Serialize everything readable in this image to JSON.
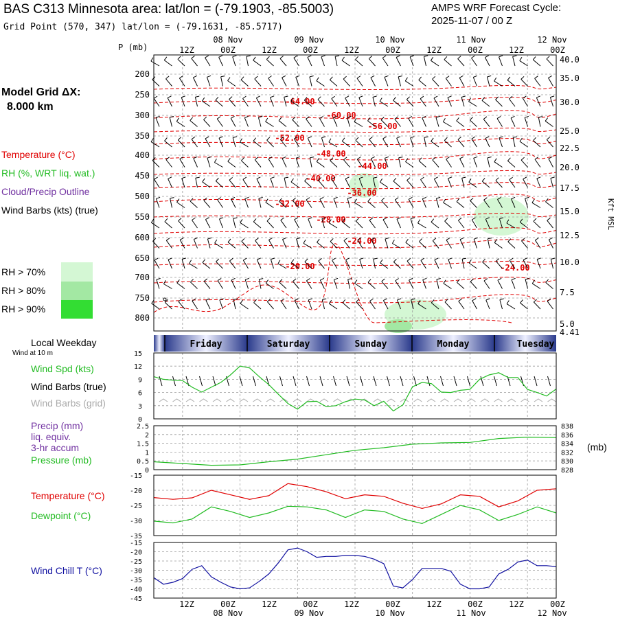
{
  "header": {
    "title": "BAS C313 Minnesota area:  lat/lon = (-79.1903, -85.5003)",
    "cycle_line1": "AMPS WRF Forecast Cycle:",
    "cycle_line2": "2025-11-07 / 00  Z",
    "subtitle": "Grid Point (570, 347) lat/lon = (-79.1631, -85.5717)"
  },
  "left_panel": {
    "model_grid_label": "Model Grid ΔX:",
    "model_grid_value": "8.000 km",
    "legend_temperature": "Temperature (°C)",
    "legend_rh": "RH (%, WRT liq. wat.)",
    "legend_cloud": "Cloud/Precip Outline",
    "legend_wind": "Wind Barbs (kts) (true)",
    "rh_70": "RH > 70%",
    "rh_80": "RH > 80%",
    "rh_90": "RH > 90%",
    "local_weekday": "Local Weekday",
    "wind_at_10m": "Wind at 10 m",
    "wind_spd": "Wind Spd (kts)",
    "wind_barbs_true": "Wind Barbs (true)",
    "wind_barbs_grid": "Wind Barbs (grid)",
    "precip_line1": "Precip (mm)",
    "precip_line2": "liq. equiv.",
    "precip_line3": "3-hr accum",
    "pressure": "Pressure (mb)",
    "temperature": "Temperature (°C)",
    "dewpoint": "Dewpoint (°C)",
    "windchill": "Wind Chill T (°C)",
    "mb_unit": "(mb)"
  },
  "colors": {
    "temp": "#e00000",
    "rh": "#22bb22",
    "cloud": "#7030a0",
    "grey": "#aaaaaa",
    "windchill": "#1010a0",
    "rh70": "#d4f7d4",
    "rh80": "#a3e8a3",
    "rh90": "#33dd33"
  },
  "chart_data": [
    {
      "type": "line",
      "name": "time-height cross section",
      "time_hours": [
        12,
        96
      ],
      "time_ticks_top": [
        "12Z",
        "00Z",
        "12Z",
        "00Z",
        "12Z",
        "00Z",
        "12Z",
        "00Z",
        "12Z",
        "00Z"
      ],
      "date_labels_top": [
        "08 Nov",
        "09 Nov",
        "10 Nov",
        "11 Nov",
        "12 Nov"
      ],
      "pressure_axis_label": "P (mb)",
      "pressure_ticks": [
        "200",
        "250",
        "300",
        "350",
        "400",
        "450",
        "500",
        "550",
        "600",
        "650",
        "700",
        "750",
        "800"
      ],
      "height_ticks": [
        "40.0",
        "35.0",
        "30.0",
        "25.0",
        "22.5",
        "20.0",
        "17.5",
        "15.0",
        "12.5",
        "10.0",
        "7.5",
        "5.0",
        "4.41"
      ],
      "height_axis_label": "Kft MSL",
      "temperature_contour_labels": [
        "-64.00",
        "-60.00",
        "-56.00",
        "-52.00",
        "-48.00",
        "-44.00",
        "-40.00",
        "-36.00",
        "-32.00",
        "-28.00",
        "-24.00",
        "-20.00",
        "-24.00"
      ]
    },
    {
      "type": "bar",
      "name": "local weekday strip",
      "days": [
        "Friday",
        "Saturday",
        "Sunday",
        "Monday",
        "Tuesday"
      ]
    },
    {
      "type": "line",
      "name": "wind speed at 10 m",
      "ylim": [
        0,
        15
      ],
      "yticks": [
        "15",
        "12",
        "9",
        "6",
        "3",
        "0"
      ],
      "x_hours": [
        12,
        14,
        16,
        18,
        20,
        22,
        24,
        26,
        28,
        30,
        32,
        34,
        36,
        38,
        40,
        42,
        44,
        46,
        48,
        50,
        52,
        54,
        56,
        58,
        60,
        62,
        64,
        66,
        68,
        70,
        72,
        74,
        76,
        78,
        80,
        82,
        84,
        86,
        88,
        90,
        92,
        94,
        96
      ],
      "series": [
        {
          "name": "Wind Spd (kts)",
          "values": [
            9.6,
            9.0,
            8.8,
            8.7,
            7.2,
            6.1,
            7.2,
            8.3,
            10.0,
            12.0,
            11.6,
            9.6,
            7.8,
            5.6,
            3.5,
            2.2,
            3.9,
            4.0,
            2.8,
            3.0,
            3.9,
            4.5,
            4.3,
            3.0,
            4.0,
            1.8,
            3.2,
            7.3,
            8.3,
            8.0,
            6.1,
            6.0,
            6.5,
            6.7,
            9.0,
            10.0,
            10.5,
            9.4,
            9.4,
            6.7,
            6.0,
            5.2,
            6.8
          ]
        }
      ]
    },
    {
      "type": "line",
      "name": "precip and pressure",
      "ylim": [
        0,
        2.5
      ],
      "yticks_left": [
        "2.5",
        "2",
        "1.5",
        "1",
        "0.5",
        "0"
      ],
      "yticks_right": [
        "838",
        "836",
        "834",
        "832",
        "830",
        "828"
      ],
      "x_hours": [
        12,
        18,
        24,
        30,
        36,
        42,
        48,
        54,
        60,
        66,
        72,
        78,
        84,
        90,
        96
      ],
      "series": [
        {
          "name": "Pressure (mb)",
          "values": [
            829.8,
            829.4,
            829.0,
            829.1,
            829.8,
            830.4,
            831.4,
            832.4,
            833.0,
            833.8,
            834.1,
            834.2,
            835.1,
            835.4,
            835.3
          ]
        }
      ]
    },
    {
      "type": "line",
      "name": "temperature and dewpoint",
      "ylim": [
        -35,
        -15
      ],
      "yticks": [
        "-15",
        "-20",
        "-25",
        "-30",
        "-35"
      ],
      "x_hours": [
        12,
        16,
        20,
        24,
        28,
        32,
        36,
        40,
        44,
        48,
        52,
        56,
        60,
        64,
        68,
        72,
        76,
        80,
        84,
        88,
        92,
        96
      ],
      "series": [
        {
          "name": "Temperature (°C)",
          "values": [
            -22.4,
            -23.0,
            -22.5,
            -20.0,
            -21.5,
            -23.0,
            -21.8,
            -17.8,
            -18.8,
            -20.5,
            -22.8,
            -21.5,
            -22.0,
            -24.3,
            -26.0,
            -24.5,
            -21.5,
            -22.0,
            -25.5,
            -23.5,
            -20.0,
            -19.5
          ]
        },
        {
          "name": "Dewpoint (°C)",
          "values": [
            -30.2,
            -30.8,
            -29.5,
            -25.5,
            -27.0,
            -29.0,
            -27.5,
            -25.3,
            -25.5,
            -26.5,
            -29.0,
            -26.5,
            -27.0,
            -29.5,
            -31.0,
            -28.0,
            -25.0,
            -26.5,
            -30.0,
            -28.0,
            -25.5,
            -27.5
          ]
        }
      ]
    },
    {
      "type": "line",
      "name": "wind chill",
      "ylim": [
        -45,
        -15
      ],
      "yticks": [
        "-15",
        "-20",
        "-25",
        "-30",
        "-35",
        "-40",
        "-45"
      ],
      "x_hours": [
        12,
        14,
        16,
        18,
        20,
        22,
        24,
        26,
        28,
        30,
        32,
        34,
        36,
        38,
        40,
        42,
        44,
        46,
        48,
        50,
        52,
        54,
        56,
        58,
        60,
        62,
        64,
        66,
        68,
        70,
        72,
        74,
        76,
        78,
        80,
        82,
        84,
        86,
        88,
        90,
        92,
        94,
        96
      ],
      "series": [
        {
          "name": "Wind Chill T (°C)",
          "values": [
            -34,
            -37.5,
            -36.5,
            -34.5,
            -29.5,
            -27.5,
            -33.5,
            -36.5,
            -39.0,
            -40.0,
            -39.5,
            -36.0,
            -32.0,
            -26.0,
            -19.0,
            -18.0,
            -20.0,
            -23.0,
            -22.5,
            -22.5,
            -22.0,
            -22.0,
            -22.5,
            -24.0,
            -26.5,
            -38.5,
            -39.5,
            -35.0,
            -29.0,
            -29.0,
            -29.0,
            -30.5,
            -37.5,
            -40.0,
            -40.0,
            -39.0,
            -32.0,
            -29.5,
            -25.5,
            -24.5,
            -27.5,
            -27.5,
            -28.0
          ]
        }
      ]
    },
    {
      "type": "line",
      "name": "bottom time axis",
      "time_ticks_bottom": [
        "12Z",
        "00Z",
        "12Z",
        "00Z",
        "12Z",
        "00Z",
        "12Z",
        "00Z",
        "12Z",
        "00Z"
      ],
      "date_labels_bottom": [
        "08 Nov",
        "09 Nov",
        "10 Nov",
        "11 Nov",
        "12 Nov"
      ]
    }
  ]
}
